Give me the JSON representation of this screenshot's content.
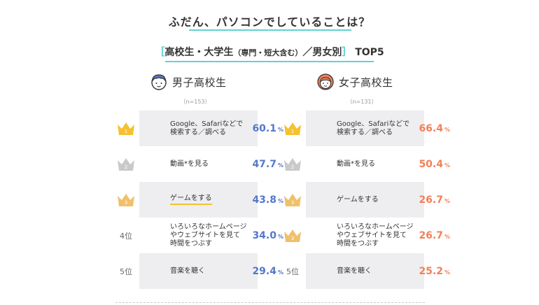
{
  "header": {
    "title": "ふだん、パソコンでしていることは？",
    "subtitle_open": "［",
    "subtitle_main": "高校生・大学生",
    "subtitle_small": "（専門・短大含む）",
    "subtitle_rest": "／男女別",
    "subtitle_close": "］",
    "subtitle_top": "TOP5"
  },
  "colors": {
    "male_accent": "#5578c9",
    "female_accent": "#f37f58",
    "gold": "#f5c12e",
    "silver": "#c9c9c9",
    "bronze": "#f0c06a",
    "teal": "#5fd3d3",
    "bar_gray": "#eeeef0"
  },
  "chart_data": [
    {
      "type": "table",
      "group": "男子高校生",
      "n_note": "（n=153）",
      "ranks": [
        "1",
        "2",
        "3",
        "4位",
        "5位"
      ],
      "categories": [
        "Google、Safariなどで\n検索する／調べる",
        "動画*を見る",
        "ゲームをする",
        "いろいろなホームページ\nやウェブサイトを見て\n時間をつぶす",
        "音楽を聴く"
      ],
      "values": [
        60.1,
        47.7,
        43.8,
        34.0,
        29.4
      ],
      "value_labels": [
        "60.1",
        "47.7",
        "43.8",
        "34.0",
        "29.4"
      ],
      "unit": "%"
    },
    {
      "type": "table",
      "group": "女子高校生",
      "n_note": "（n=131）",
      "ranks": [
        "1",
        "2",
        "3",
        "3",
        "5位"
      ],
      "categories": [
        "Google、Safariなどで\n検索する／調べる",
        "動画*を見る",
        "ゲームをする",
        "いろいろなホームページ\nやウェブサイトを見て\n時間をつぶす",
        "音楽を聴く"
      ],
      "values": [
        66.4,
        50.4,
        26.7,
        26.7,
        25.2
      ],
      "value_labels": [
        "66.4",
        "50.4",
        "26.7",
        "26.7",
        "25.2"
      ],
      "unit": "%"
    }
  ]
}
